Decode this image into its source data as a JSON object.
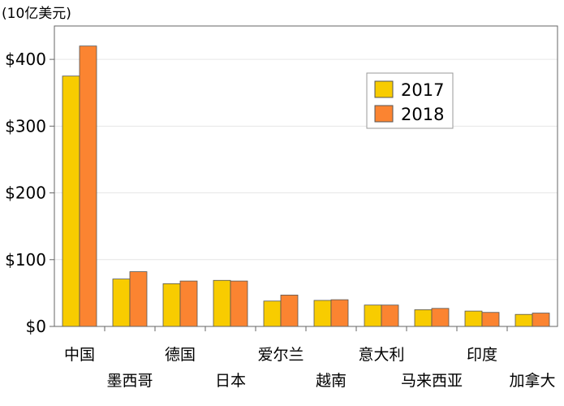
{
  "chart_data": {
    "type": "bar",
    "unit_label": "(10亿美元)",
    "categories": [
      "中国",
      "墨西哥",
      "德国",
      "日本",
      "爱尔兰",
      "越南",
      "意大利",
      "马来西亚",
      "印度",
      "加拿大"
    ],
    "series": [
      {
        "name": "2017",
        "color": "#f8cc00",
        "values": [
          375,
          71,
          64,
          69,
          38,
          39,
          32,
          25,
          23,
          18
        ]
      },
      {
        "name": "2018",
        "color": "#fb8431",
        "values": [
          420,
          82,
          68,
          68,
          47,
          40,
          32,
          27,
          21,
          20
        ]
      }
    ],
    "yticks": [
      "$0",
      "$100",
      "$200",
      "$300",
      "$400"
    ],
    "ylim": [
      0,
      450
    ],
    "legend_position": "top-right",
    "grid": true
  }
}
